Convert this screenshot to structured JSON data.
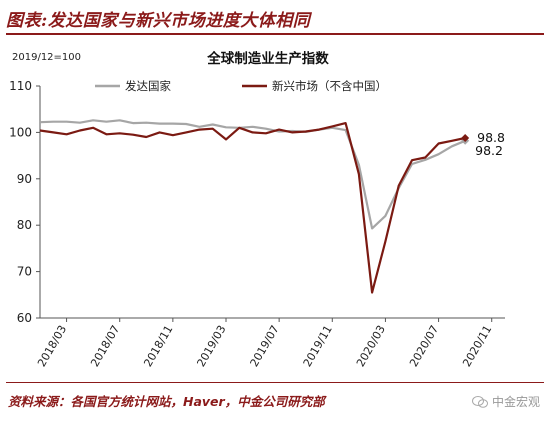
{
  "figure_title": "图表:发达国家与新兴市场进度大体相同",
  "source_note": "资料来源：各国官方统计网站，Haver，中金公司研究部",
  "watermark": "中金宏观",
  "chart_data": {
    "type": "line",
    "title": "全球制造业生产指数",
    "unit_note": "2019/12=100",
    "ylim": [
      60,
      110
    ],
    "yticks": [
      60,
      70,
      80,
      90,
      100,
      110
    ],
    "xticks": [
      "2018/03",
      "2018/07",
      "2018/11",
      "2019/03",
      "2019/07",
      "2019/11",
      "2020/03",
      "2020/07",
      "2020/11"
    ],
    "x": [
      "2018/01",
      "2018/02",
      "2018/03",
      "2018/04",
      "2018/05",
      "2018/06",
      "2018/07",
      "2018/08",
      "2018/09",
      "2018/10",
      "2018/11",
      "2018/12",
      "2019/01",
      "2019/02",
      "2019/03",
      "2019/04",
      "2019/05",
      "2019/06",
      "2019/07",
      "2019/08",
      "2019/09",
      "2019/10",
      "2019/11",
      "2019/12",
      "2020/01",
      "2020/02",
      "2020/03",
      "2020/04",
      "2020/05",
      "2020/06",
      "2020/07",
      "2020/08",
      "2020/09"
    ],
    "series": [
      {
        "name": "发达国家",
        "color": "#a6a6a6",
        "values": [
          102.2,
          102.3,
          102.3,
          102.1,
          102.6,
          102.3,
          102.6,
          102.0,
          102.1,
          101.9,
          101.9,
          101.8,
          101.2,
          101.7,
          101.1,
          101.0,
          101.2,
          100.8,
          100.2,
          100.3,
          100.1,
          100.6,
          101.0,
          100.5,
          93.0,
          79.3,
          82.0,
          88.0,
          93.2,
          94.1,
          95.3,
          97.0,
          98.2
        ],
        "end_label": "98.2"
      },
      {
        "name": "新兴市场（不含中国）",
        "color": "#7b1a12",
        "values": [
          100.4,
          100.0,
          99.6,
          100.4,
          101.0,
          99.6,
          99.8,
          99.5,
          99.0,
          100.0,
          99.4,
          100.0,
          100.6,
          100.8,
          98.5,
          101.0,
          100.0,
          99.8,
          100.6,
          100.0,
          100.2,
          100.6,
          101.3,
          102.0,
          91.0,
          65.5,
          76.5,
          88.5,
          94.0,
          94.6,
          97.6,
          98.2,
          98.8
        ],
        "end_label": "98.8"
      }
    ],
    "grid": false,
    "legend_position": "top-left"
  }
}
